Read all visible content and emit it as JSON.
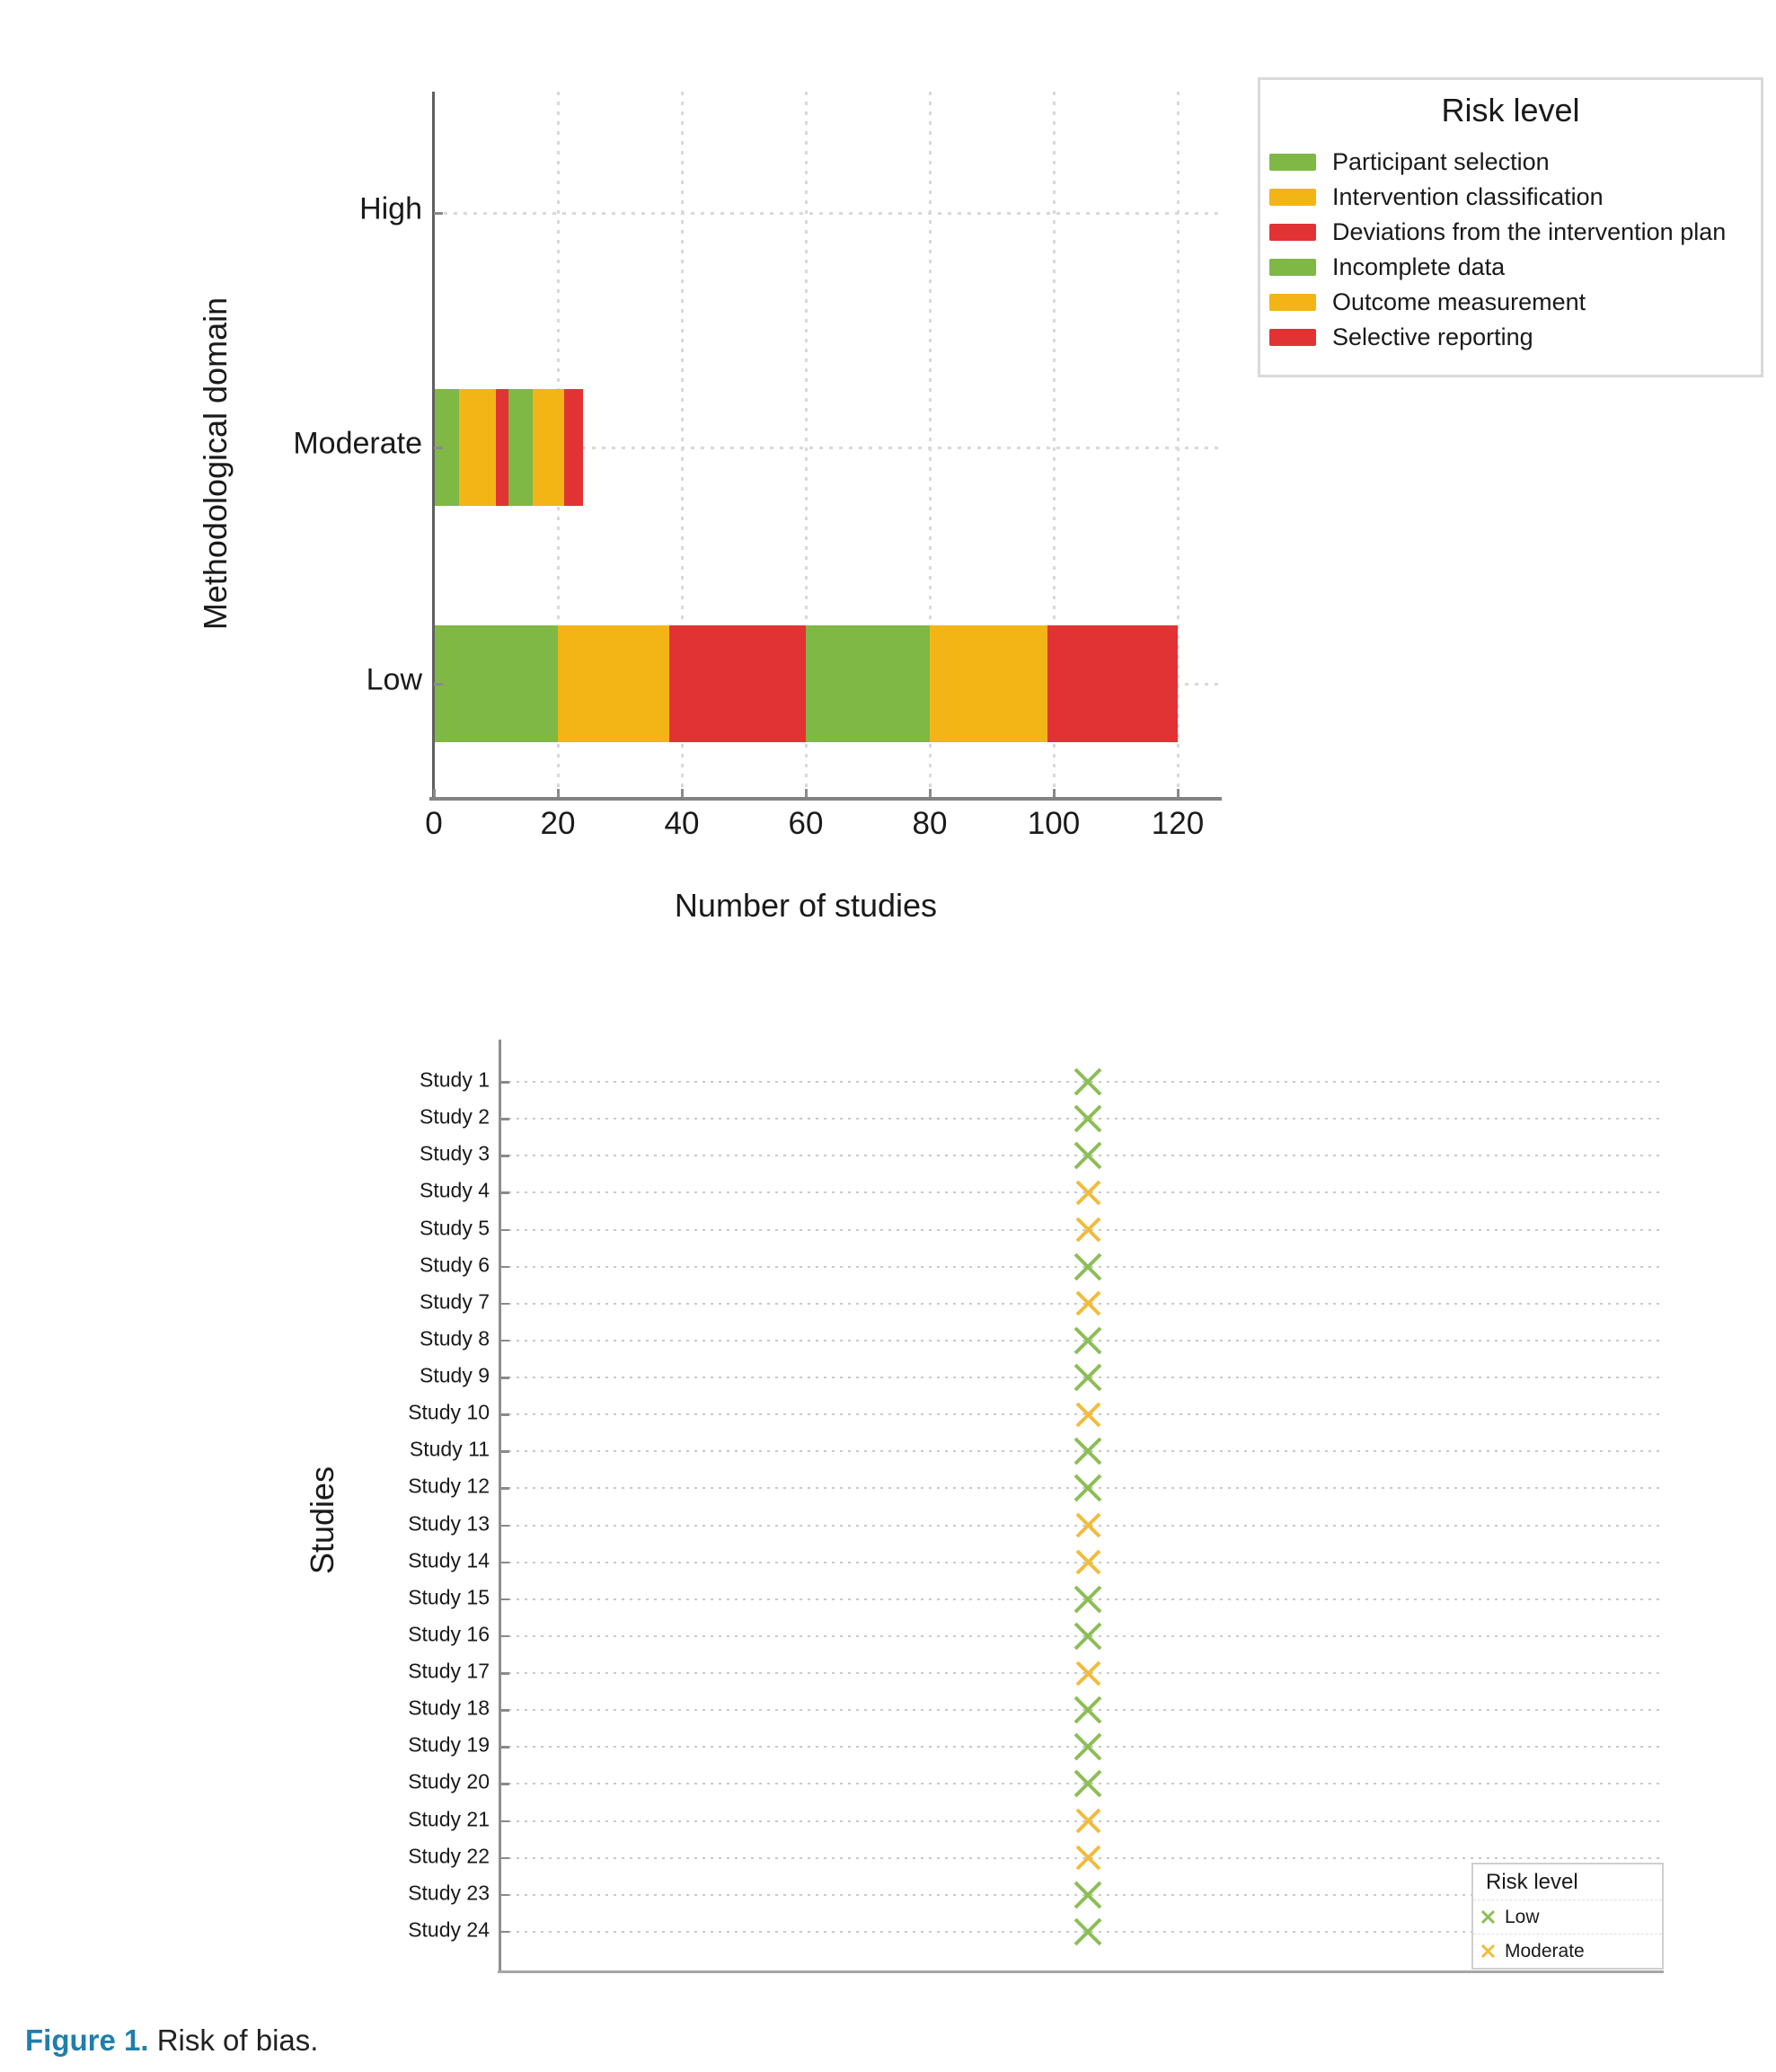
{
  "caption": {
    "label": "Figure 1.",
    "text": " Risk of bias.",
    "label_color": "#207EAA"
  },
  "palette": {
    "green": "#7FB845",
    "yellow": "#F3B516",
    "red": "#E23334",
    "marker_green": "#8CBE55",
    "marker_yellow": "#F0BC3B",
    "axis_dark": "#5f5f5f",
    "grid_light": "#d9d9d9"
  },
  "chart_data": [
    {
      "type": "bar",
      "orientation": "horizontal",
      "stacked": true,
      "xlabel": "Number of studies",
      "ylabel": "Methodological domain",
      "categories": [
        "High",
        "Moderate",
        "Low"
      ],
      "x_ticks": [
        0,
        20,
        40,
        60,
        80,
        100,
        120
      ],
      "xlim": [
        0,
        127
      ],
      "grid": true,
      "legend": {
        "title": "Risk level",
        "position": "top-right"
      },
      "series": [
        {
          "name": "Participant selection",
          "color": "#7FB845",
          "values": {
            "High": 0,
            "Moderate": 4,
            "Low": 20
          }
        },
        {
          "name": "Intervention classification",
          "color": "#F3B516",
          "values": {
            "High": 0,
            "Moderate": 6,
            "Low": 18
          }
        },
        {
          "name": "Deviations from the intervention plan",
          "color": "#E23334",
          "values": {
            "High": 0,
            "Moderate": 2,
            "Low": 22
          }
        },
        {
          "name": "Incomplete data",
          "color": "#7FB845",
          "values": {
            "High": 0,
            "Moderate": 4,
            "Low": 20
          }
        },
        {
          "name": "Outcome measurement",
          "color": "#F3B516",
          "values": {
            "High": 0,
            "Moderate": 5,
            "Low": 19
          }
        },
        {
          "name": "Selective reporting",
          "color": "#E23334",
          "values": {
            "High": 0,
            "Moderate": 3,
            "Low": 21
          }
        }
      ]
    },
    {
      "type": "scatter",
      "marker": "x",
      "ylabel": "Studies",
      "grid": "horizontal-dotted",
      "legend": {
        "title": "Risk level",
        "position": "bottom-right",
        "entries": [
          {
            "label": "Low",
            "color": "#8CBE55"
          },
          {
            "label": "Moderate",
            "color": "#F0BC3B"
          }
        ]
      },
      "points": [
        {
          "study": "Study 1",
          "risk": "Low"
        },
        {
          "study": "Study 2",
          "risk": "Low"
        },
        {
          "study": "Study 3",
          "risk": "Low"
        },
        {
          "study": "Study 4",
          "risk": "Moderate"
        },
        {
          "study": "Study 5",
          "risk": "Moderate"
        },
        {
          "study": "Study 6",
          "risk": "Low"
        },
        {
          "study": "Study 7",
          "risk": "Moderate"
        },
        {
          "study": "Study 8",
          "risk": "Low"
        },
        {
          "study": "Study 9",
          "risk": "Low"
        },
        {
          "study": "Study 10",
          "risk": "Moderate"
        },
        {
          "study": "Study 11",
          "risk": "Low"
        },
        {
          "study": "Study 12",
          "risk": "Low"
        },
        {
          "study": "Study 13",
          "risk": "Moderate"
        },
        {
          "study": "Study 14",
          "risk": "Moderate"
        },
        {
          "study": "Study 15",
          "risk": "Low"
        },
        {
          "study": "Study 16",
          "risk": "Low"
        },
        {
          "study": "Study 17",
          "risk": "Moderate"
        },
        {
          "study": "Study 18",
          "risk": "Low"
        },
        {
          "study": "Study 19",
          "risk": "Low"
        },
        {
          "study": "Study 20",
          "risk": "Low"
        },
        {
          "study": "Study 21",
          "risk": "Moderate"
        },
        {
          "study": "Study 22",
          "risk": "Moderate"
        },
        {
          "study": "Study 23",
          "risk": "Low"
        },
        {
          "study": "Study 24",
          "risk": "Low"
        }
      ]
    }
  ]
}
